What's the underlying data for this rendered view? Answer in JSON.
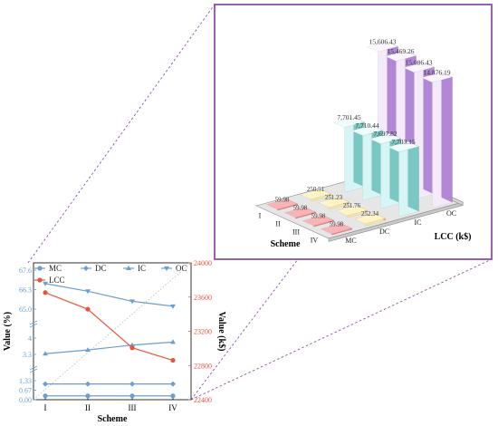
{
  "colors": {
    "left_axis": "#6a9fd0",
    "right_axis": "#e8553f",
    "frame": "#8e4ea8",
    "ref_dash": "#8e4ea8",
    "diag": "#b8b8b8",
    "bar_mc_front": "#f07f86",
    "bar_mc_top": "#f8b5b8",
    "bar_mc_side": "#d9676e",
    "bar_dc_front": "#fde59c",
    "bar_dc_top": "#fff3c8",
    "bar_dc_side": "#f4a978",
    "bar_ic_front": "#d7f5f4",
    "bar_ic_top": "#f0fdfd",
    "bar_ic_side": "#79c8c4",
    "bar_oc_front": "#f5eafc",
    "bar_oc_top": "#fbf5fe",
    "bar_oc_side": "#b287d6"
  },
  "chart_data": [
    {
      "type": "line",
      "categories": [
        "I",
        "II",
        "III",
        "IV"
      ],
      "xlabel": "Scheme",
      "ylabel": "Value (%)",
      "ylabel_right": "Value (k$)",
      "legend_position": "top",
      "left_axis_ticks": [
        "0.00",
        "0.67",
        "1.33",
        "3.3",
        "4",
        "65.0",
        "66.3",
        "67.6"
      ],
      "right_axis_ticks": [
        "22400",
        "22800",
        "23200",
        "23600",
        "24000"
      ],
      "ylim_right": [
        22400,
        24000
      ],
      "series": [
        {
          "name": "MC",
          "axis": "left",
          "values": [
            0.27,
            0.27,
            0.27,
            0.27
          ]
        },
        {
          "name": "DC",
          "axis": "left",
          "values": [
            1.1,
            1.1,
            1.1,
            1.1
          ]
        },
        {
          "name": "IC",
          "axis": "left",
          "values": [
            3.33,
            3.49,
            3.7,
            3.83
          ]
        },
        {
          "name": "OC",
          "axis": "left",
          "values": [
            66.7,
            66.19,
            65.52,
            65.19
          ]
        },
        {
          "name": "LCC",
          "axis": "right",
          "values": [
            23652.6,
            23457.9,
            23006.8,
            22860.8
          ]
        }
      ]
    },
    {
      "type": "bar",
      "chart_style": "3d-bar",
      "xlabel": "Scheme",
      "ylabel": "LCC (k$)",
      "categories": [
        "I",
        "II",
        "III",
        "IV"
      ],
      "series_categories": [
        "MC",
        "DC",
        "IC",
        "OC"
      ],
      "series": [
        {
          "name": "MC",
          "values": [
            59.98,
            59.98,
            59.98,
            59.98
          ]
        },
        {
          "name": "DC",
          "values": [
            250.51,
            251.23,
            251.76,
            252.34
          ]
        },
        {
          "name": "IC",
          "values": [
            7701.45,
            7710.44,
            7697.82,
            7703.15
          ]
        },
        {
          "name": "OC",
          "values": [
            15606.43,
            15469.26,
            15086.43,
            14876.19
          ]
        }
      ],
      "value_labels": {
        "MC": [
          "59.98",
          "59.98",
          "59.98",
          "59.98"
        ],
        "DC": [
          "250.51",
          "251.23",
          "251.76",
          "252.34"
        ],
        "IC": [
          "7,701.45",
          "7,710.44",
          "7,697.82",
          "7,703.15"
        ],
        "OC": [
          "15,606.43",
          "15,469.26",
          "15,086.43",
          "14,876.19"
        ]
      }
    }
  ]
}
